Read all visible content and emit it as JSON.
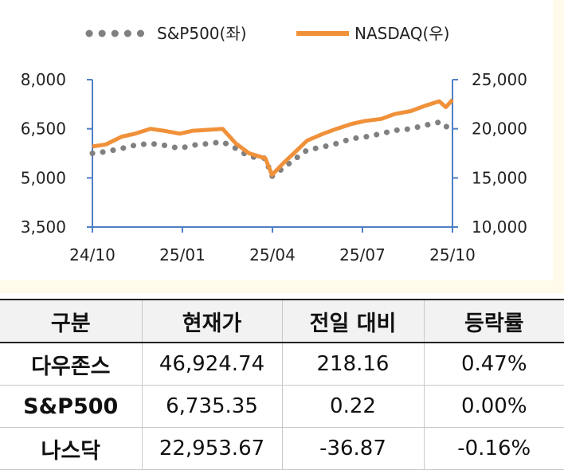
{
  "chart_data": {
    "type": "line",
    "x_ticks": [
      "24/10",
      "25/01",
      "25/04",
      "25/07",
      "25/10"
    ],
    "y_left_ticks": [
      "8,000",
      "6,500",
      "5,000",
      "3,500"
    ],
    "y_right_ticks": [
      "25,000",
      "20,000",
      "15,000",
      "10,000"
    ],
    "y_left_range": [
      3500,
      8000
    ],
    "y_right_range": [
      10000,
      25000
    ],
    "grid": false,
    "legend_position": "top",
    "series": [
      {
        "name": "S&P500(좌)",
        "axis": "left",
        "style": "dotted",
        "color": "#808080",
        "x": [
          "2024-10-01",
          "2024-10-15",
          "2024-11-01",
          "2024-11-15",
          "2024-12-01",
          "2024-12-15",
          "2025-01-01",
          "2025-01-15",
          "2025-02-01",
          "2025-02-15",
          "2025-03-01",
          "2025-03-15",
          "2025-04-01",
          "2025-04-08",
          "2025-04-20",
          "2025-05-01",
          "2025-05-15",
          "2025-06-01",
          "2025-06-15",
          "2025-07-01",
          "2025-07-15",
          "2025-08-01",
          "2025-08-15",
          "2025-09-01",
          "2025-09-15",
          "2025-10-01",
          "2025-10-08",
          "2025-10-15"
        ],
        "y": [
          5750,
          5800,
          5900,
          6000,
          6050,
          6000,
          5900,
          6000,
          6050,
          6100,
          5900,
          5650,
          5600,
          5050,
          5300,
          5550,
          5850,
          5950,
          6050,
          6200,
          6250,
          6350,
          6450,
          6500,
          6600,
          6700,
          6550,
          6735
        ]
      },
      {
        "name": "NASDAQ(우)",
        "axis": "right",
        "style": "solid",
        "color": "#f0913a",
        "x": [
          "2024-10-01",
          "2024-10-15",
          "2024-11-01",
          "2024-11-15",
          "2024-12-01",
          "2024-12-15",
          "2025-01-01",
          "2025-01-15",
          "2025-02-01",
          "2025-02-15",
          "2025-03-01",
          "2025-03-15",
          "2025-04-01",
          "2025-04-08",
          "2025-04-20",
          "2025-05-01",
          "2025-05-15",
          "2025-06-01",
          "2025-06-15",
          "2025-07-01",
          "2025-07-15",
          "2025-08-01",
          "2025-08-15",
          "2025-09-01",
          "2025-09-15",
          "2025-10-01",
          "2025-10-08",
          "2025-10-15"
        ],
        "y": [
          18200,
          18400,
          19200,
          19500,
          20000,
          19800,
          19500,
          19800,
          19900,
          20000,
          18500,
          17500,
          17000,
          15300,
          16500,
          17500,
          18800,
          19500,
          20000,
          20500,
          20800,
          21000,
          21500,
          21800,
          22300,
          22800,
          22200,
          22954
        ]
      }
    ]
  },
  "table": {
    "headers": [
      "구분",
      "현재가",
      "전일 대비",
      "등락률"
    ],
    "rows": [
      [
        "다우존스",
        "46,924.74",
        "218.16",
        "0.47%"
      ],
      [
        "S&P500",
        "6,735.35",
        "0.22",
        "0.00%"
      ],
      [
        "나스닥",
        "22,953.67",
        "-36.87",
        "-0.16%"
      ]
    ]
  }
}
